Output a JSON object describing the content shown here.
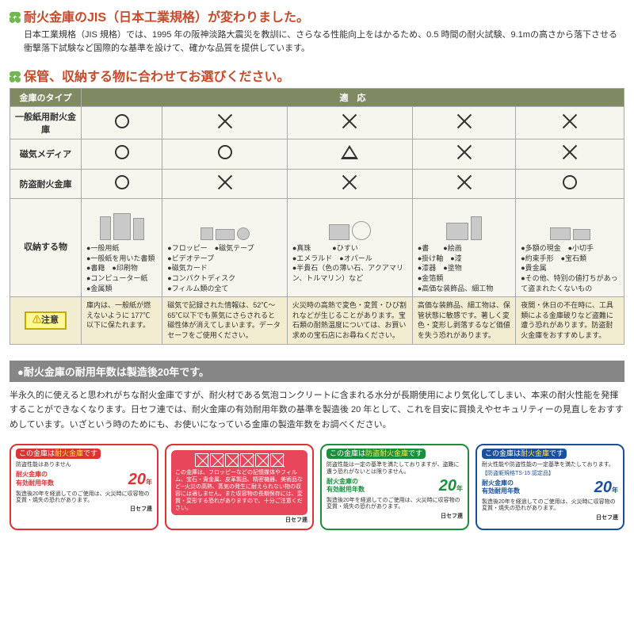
{
  "section1": {
    "title": "耐火金庫のJIS（日本工業規格）が変わりました。",
    "intro": "日本工業規格（JIS 規格）では、1995 年の阪神淡路大震災を教訓に、さらなる性能向上をはかるため、0.5 時間の耐火試験、9.1mの高さから落下させる衝撃落下試験など国際的な基準を設けて、確かな品質を提供しています。"
  },
  "section2": {
    "title": "保管、収納する物に合わせてお選びください。",
    "header_left": "金庫のタイプ",
    "header_right": "適　応",
    "rows": [
      {
        "label": "一般紙用耐火金庫",
        "cells": [
          "O",
          "X",
          "X",
          "X",
          "X"
        ]
      },
      {
        "label": "磁気メディア",
        "cells": [
          "O",
          "O",
          "T",
          "X",
          "X"
        ]
      },
      {
        "label": "防盗耐火金庫",
        "cells": [
          "O",
          "X",
          "X",
          "X",
          "O"
        ]
      }
    ],
    "items_label": "収納する物",
    "items": [
      "●一般用紙\n●一般紙を用いた書類\n●書籍　●印刷物\n●コンピューター紙\n●金属類",
      "●フロッピー　●磁気テープ\n●ビデオテープ\n●磁気カード\n●コンパクトディスク\n●フィルム類の全て",
      "●真珠　　　●ひすい\n●エメラルド　●オパール\n●半貴石（色の薄い石、アクアマリン、トルマリン）など",
      "●書　　●絵画\n●掛け軸　●漆\n●漆器　●塗物\n●金箔類\n●高価な装飾品、細工物",
      "●多額の現金　●小切手\n●約束手形　●宝石類\n●貴金属\n●その他、特別の値打ちがあって盗まれたくないもの"
    ],
    "notice_label": "注意",
    "notices": [
      "庫内は、一般紙が燃えないように 177℃以下に保たれます。",
      "磁気で記録された情報は、52℃〜65℃以下でも蒸気にさらされると磁性体が消えてしまいます。データセーフをご使用ください。",
      "火災時の高熱で変色・変質・ひび割れなどが生じることがあります。宝石類の耐熱温度については、お買い求めの宝石店にお尋ねください。",
      "高価な装飾品、細工物は、保管状態に敏感です。著しく変色・変形し剥落するなど価値を失う恐れがあります。",
      "夜間・休日の不在時に、工具類による金庫破りなど盗難に遭う恐れがあります。防盗耐火金庫をおすすめします。"
    ]
  },
  "section3": {
    "bar": "●耐火金庫の耐用年数は製造後20年です。",
    "text": "半永久的に使えると思われがちな耐火金庫ですが、耐火材である気泡コンクリートに含まれる水分が長期使用により気化してしまい、本来の耐火性能を発揮することができなくなります。日セフ連では、耐火金庫の有効耐用年数の基準を製造後 20 年として、これを目安に買換えやセキュリティーの見直しをおすすめしています。いざという時のためにも、お使いになっている金庫の製造年数をお調べください。"
  },
  "labels": {
    "l1": {
      "top": "この金庫は耐火金庫です",
      "sub": "防盗性能はありません",
      "line1": "耐火金庫の",
      "line2": "有効耐用年数",
      "num": "20",
      "unit": "年",
      "note": "製造後20年を経過してのご使用は、火災時に収容物の変質・焼失の恐れがあります。",
      "brand": "日セフ連"
    },
    "l2": {
      "text": "この金庫は、フロッピーなどの記憶媒体やフィルム、宝石・貴金属、皮革製品、精密機器、美術品など─火災の高熱、蒸気の発生に耐えられない物の収容には適しません。また収容物の長期保存には、変質・変形する恐れがありますので、十分ご注意ください。",
      "brand": "日セフ連"
    },
    "l3": {
      "top": "この金庫は防盗耐火金庫です",
      "sub": "防盗性能は一定の基準を満たしておりますが、盗難に遭う恐れがないとは限りません。",
      "line1": "耐火金庫の",
      "line2": "有効耐用年数",
      "num": "20",
      "unit": "年",
      "note": "製造後20年を経過してのご使用は、火災時に収容物の変質・焼失の恐れがあります。",
      "brand": "日セフ連"
    },
    "l4": {
      "top": "この金庫は耐火金庫です",
      "sub": "耐火性能や防盗性能の一定基準を満たしております。",
      "sub2": "【防盗躯規格TS-15 認定品】",
      "line1": "耐火金庫の",
      "line2": "有効耐用年数",
      "num": "20",
      "unit": "年",
      "note": "製造後20年を経過してのご使用は、火災時に収容物の変質・焼失の恐れがあります。",
      "brand": "日セフ連"
    }
  }
}
